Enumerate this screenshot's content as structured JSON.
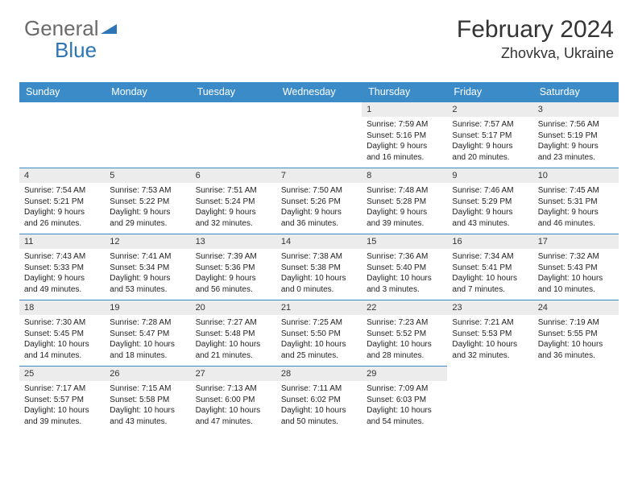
{
  "logo": {
    "gray": "General",
    "blue": "Blue"
  },
  "title": "February 2024",
  "location": "Zhovkva, Ukraine",
  "headers": [
    "Sunday",
    "Monday",
    "Tuesday",
    "Wednesday",
    "Thursday",
    "Friday",
    "Saturday"
  ],
  "header_bg": "#3b8bc9",
  "header_fg": "#ffffff",
  "daynum_bg": "#ececec",
  "weeks": [
    [
      null,
      null,
      null,
      null,
      {
        "n": "1",
        "sr": "7:59 AM",
        "ss": "5:16 PM",
        "dl": "9 hours and 16 minutes."
      },
      {
        "n": "2",
        "sr": "7:57 AM",
        "ss": "5:17 PM",
        "dl": "9 hours and 20 minutes."
      },
      {
        "n": "3",
        "sr": "7:56 AM",
        "ss": "5:19 PM",
        "dl": "9 hours and 23 minutes."
      }
    ],
    [
      {
        "n": "4",
        "sr": "7:54 AM",
        "ss": "5:21 PM",
        "dl": "9 hours and 26 minutes."
      },
      {
        "n": "5",
        "sr": "7:53 AM",
        "ss": "5:22 PM",
        "dl": "9 hours and 29 minutes."
      },
      {
        "n": "6",
        "sr": "7:51 AM",
        "ss": "5:24 PM",
        "dl": "9 hours and 32 minutes."
      },
      {
        "n": "7",
        "sr": "7:50 AM",
        "ss": "5:26 PM",
        "dl": "9 hours and 36 minutes."
      },
      {
        "n": "8",
        "sr": "7:48 AM",
        "ss": "5:28 PM",
        "dl": "9 hours and 39 minutes."
      },
      {
        "n": "9",
        "sr": "7:46 AM",
        "ss": "5:29 PM",
        "dl": "9 hours and 43 minutes."
      },
      {
        "n": "10",
        "sr": "7:45 AM",
        "ss": "5:31 PM",
        "dl": "9 hours and 46 minutes."
      }
    ],
    [
      {
        "n": "11",
        "sr": "7:43 AM",
        "ss": "5:33 PM",
        "dl": "9 hours and 49 minutes."
      },
      {
        "n": "12",
        "sr": "7:41 AM",
        "ss": "5:34 PM",
        "dl": "9 hours and 53 minutes."
      },
      {
        "n": "13",
        "sr": "7:39 AM",
        "ss": "5:36 PM",
        "dl": "9 hours and 56 minutes."
      },
      {
        "n": "14",
        "sr": "7:38 AM",
        "ss": "5:38 PM",
        "dl": "10 hours and 0 minutes."
      },
      {
        "n": "15",
        "sr": "7:36 AM",
        "ss": "5:40 PM",
        "dl": "10 hours and 3 minutes."
      },
      {
        "n": "16",
        "sr": "7:34 AM",
        "ss": "5:41 PM",
        "dl": "10 hours and 7 minutes."
      },
      {
        "n": "17",
        "sr": "7:32 AM",
        "ss": "5:43 PM",
        "dl": "10 hours and 10 minutes."
      }
    ],
    [
      {
        "n": "18",
        "sr": "7:30 AM",
        "ss": "5:45 PM",
        "dl": "10 hours and 14 minutes."
      },
      {
        "n": "19",
        "sr": "7:28 AM",
        "ss": "5:47 PM",
        "dl": "10 hours and 18 minutes."
      },
      {
        "n": "20",
        "sr": "7:27 AM",
        "ss": "5:48 PM",
        "dl": "10 hours and 21 minutes."
      },
      {
        "n": "21",
        "sr": "7:25 AM",
        "ss": "5:50 PM",
        "dl": "10 hours and 25 minutes."
      },
      {
        "n": "22",
        "sr": "7:23 AM",
        "ss": "5:52 PM",
        "dl": "10 hours and 28 minutes."
      },
      {
        "n": "23",
        "sr": "7:21 AM",
        "ss": "5:53 PM",
        "dl": "10 hours and 32 minutes."
      },
      {
        "n": "24",
        "sr": "7:19 AM",
        "ss": "5:55 PM",
        "dl": "10 hours and 36 minutes."
      }
    ],
    [
      {
        "n": "25",
        "sr": "7:17 AM",
        "ss": "5:57 PM",
        "dl": "10 hours and 39 minutes."
      },
      {
        "n": "26",
        "sr": "7:15 AM",
        "ss": "5:58 PM",
        "dl": "10 hours and 43 minutes."
      },
      {
        "n": "27",
        "sr": "7:13 AM",
        "ss": "6:00 PM",
        "dl": "10 hours and 47 minutes."
      },
      {
        "n": "28",
        "sr": "7:11 AM",
        "ss": "6:02 PM",
        "dl": "10 hours and 50 minutes."
      },
      {
        "n": "29",
        "sr": "7:09 AM",
        "ss": "6:03 PM",
        "dl": "10 hours and 54 minutes."
      },
      null,
      null
    ]
  ],
  "labels": {
    "sunrise": "Sunrise:",
    "sunset": "Sunset:",
    "daylight": "Daylight:"
  }
}
